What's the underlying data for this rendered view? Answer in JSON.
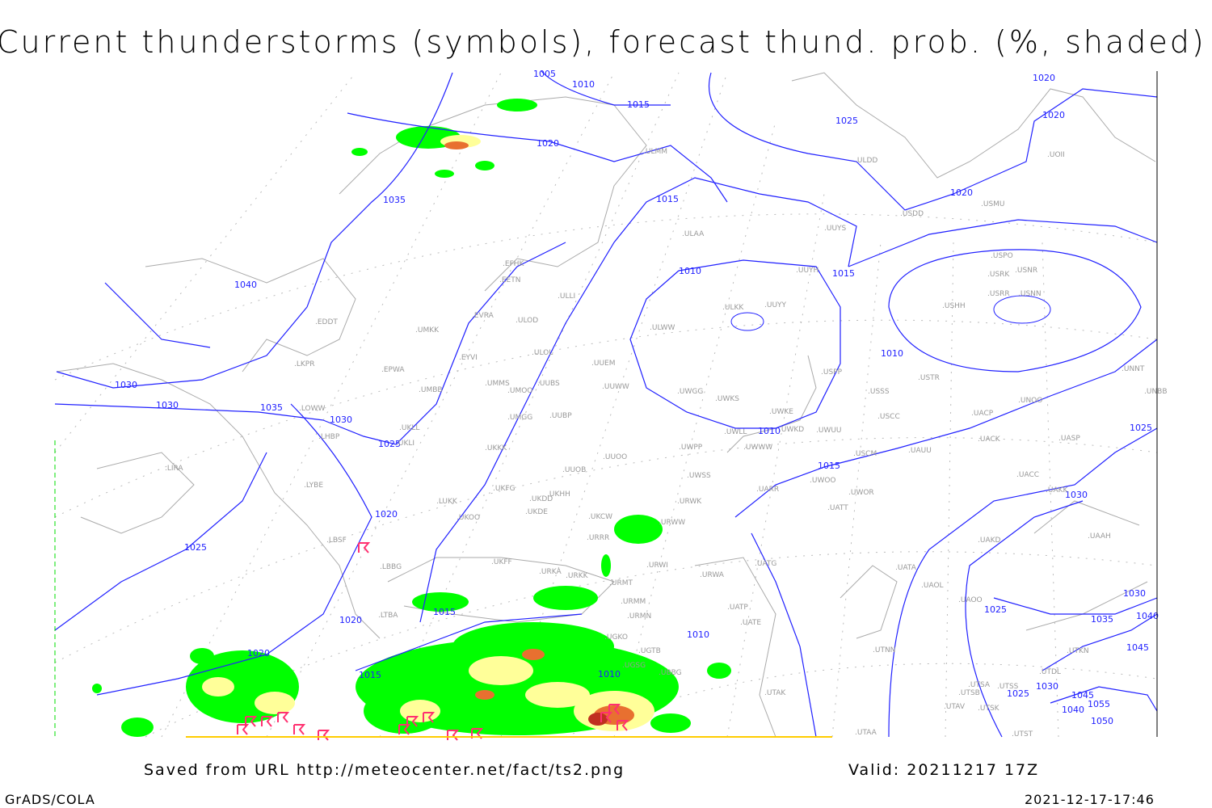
{
  "title": "Current thunderstorms (symbols), forecast thund. prob. (%, shaded)",
  "footer": {
    "saved": "Saved from URL http://meteocenter.net/fact/ts2.png",
    "valid": "Valid: 20211217 17Z",
    "software": "GrADS/COLA",
    "timestamp": "2021-12-17-17:46"
  },
  "colors": {
    "isobar": "#2020ff",
    "station": "#999999",
    "coast": "#aaaaaa",
    "prob_low": "#00ff00",
    "prob_mid": "#ffff99",
    "prob_high": "#e87030",
    "prob_top": "#c03020",
    "thunderstorm_symbol": "#ff3070"
  },
  "isobar_labels": [
    "1005",
    "1010",
    "1015",
    "1020",
    "1020",
    "1025",
    "1035",
    "1040",
    "1030",
    "1030",
    "1035",
    "1030",
    "1025",
    "1020",
    "1025",
    "1015",
    "1020",
    "1015",
    "1015",
    "1010",
    "1010",
    "1010",
    "1015",
    "1010",
    "1010",
    "1015",
    "1020",
    "1020",
    "1020",
    "1025",
    "1030",
    "1025",
    "1030",
    "1035",
    "1040",
    "1045",
    "1025",
    "1030",
    "1045",
    "1055",
    "1040",
    "1050"
  ],
  "stations": [
    "EFHK",
    "EETN",
    "ULLI",
    "EVRA",
    "ULOD",
    "EDDT",
    "UMKK",
    "EYVI",
    "ULOL",
    "UUEM",
    "LKPR",
    "EPWA",
    "UMMS",
    "UMOO",
    "UUBS",
    "UUWW",
    "UMBB",
    "LOWW",
    "UMGG",
    "UUBP",
    "UKLL",
    "LHBP",
    "UKLI",
    "UKKK",
    "UUOO",
    "UUOB",
    "LIRA",
    "LYBE",
    "UKHH",
    "UKFG",
    "UKDD",
    "LUKK",
    "UKDE",
    "UKOO",
    "UKCW",
    "URRR",
    "LBSF",
    "UKFF",
    "URKA",
    "URKK",
    "LBBG",
    "URMT",
    "URWI",
    "URMM",
    "URMN",
    "LTBA",
    "UGKO",
    "UGTB",
    "UGSG",
    "UBBG",
    "URWA",
    "URWW",
    "URWK",
    "UWSS",
    "UWPP",
    "UWWW",
    "UWLL",
    "UWKE",
    "UWKS",
    "UWGG",
    "ULWW",
    "ULKK",
    "UUYY",
    "UUYH",
    "UWKD",
    "UWUU",
    "UARR",
    "UATT",
    "UWOO",
    "UWOR",
    "USCM",
    "UAUU",
    "USCC",
    "USSS",
    "USTR",
    "USPP",
    "UNOO",
    "UACP",
    "UACK",
    "UASP",
    "UACC",
    "UAKK",
    "UAKD",
    "UAAH",
    "UATA",
    "UAOL",
    "UAOO",
    "UATG",
    "UATE",
    "UATP",
    "UTAK",
    "UTNN",
    "UTAA",
    "UTAV",
    "UTSB",
    "UTSA",
    "UTSS",
    "UTSK",
    "UTST",
    "UTDL",
    "UTKN",
    "UNNT",
    "UNBB",
    "ULDD",
    "USDD",
    "USMU",
    "UUYS",
    "ULAA",
    "ULMM",
    "USRK",
    "USRR",
    "USNN",
    "USHH",
    "USNR",
    "USPO",
    "UOII"
  ]
}
